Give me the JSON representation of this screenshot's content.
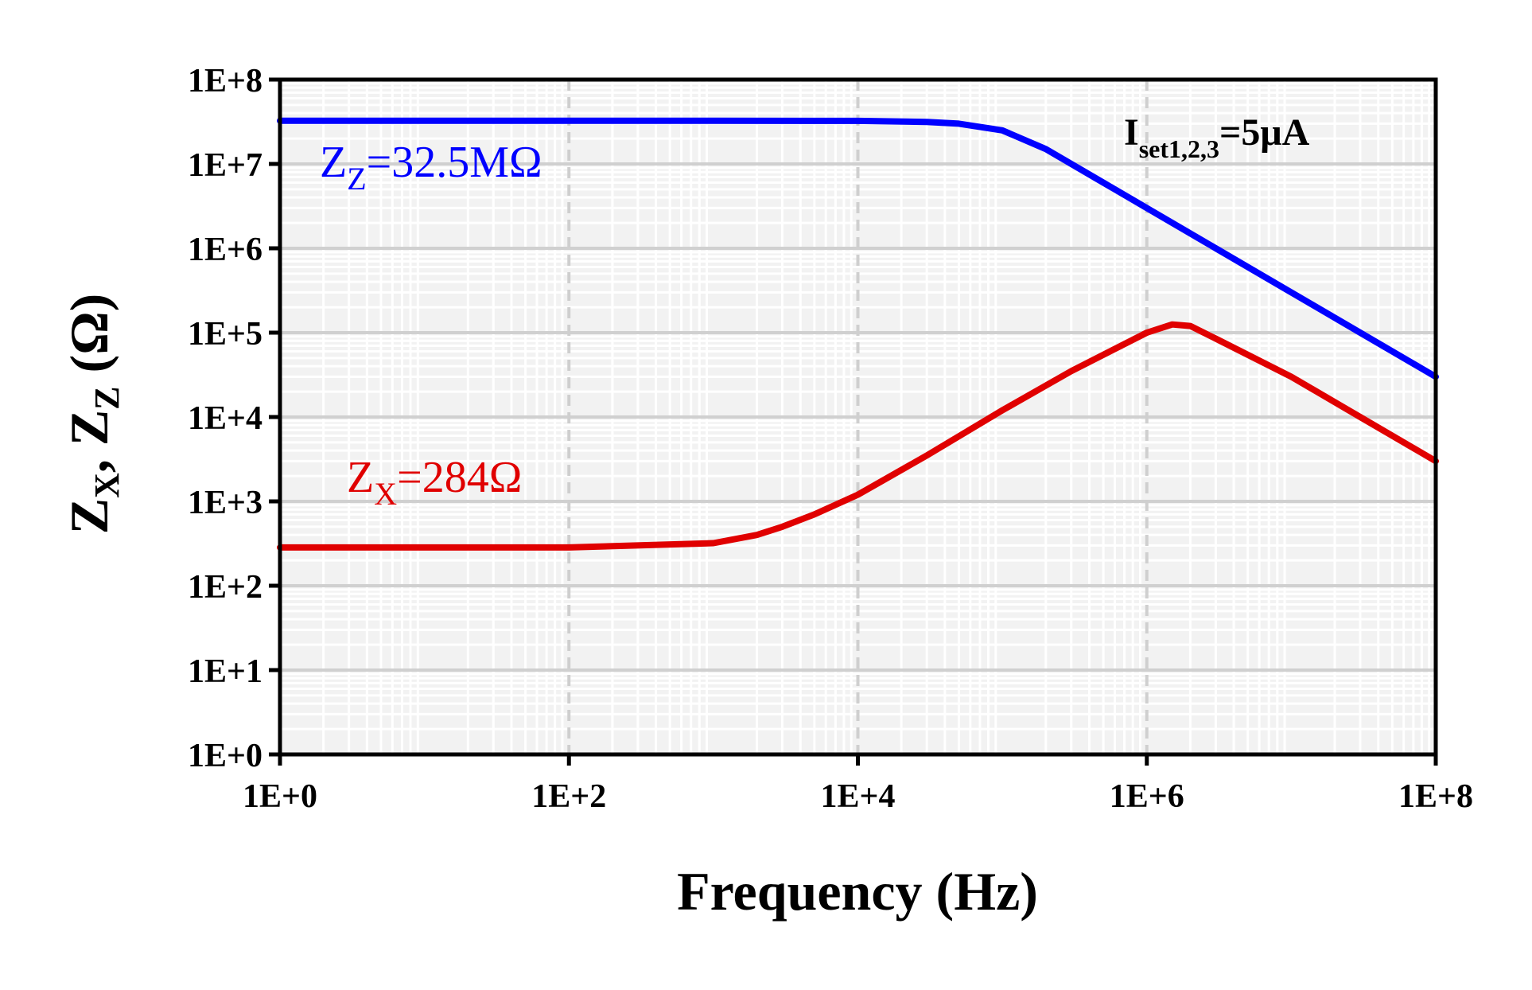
{
  "chart_data": {
    "type": "line",
    "x_scale": "log",
    "y_scale": "log",
    "xlabel": "Frequency (Hz)",
    "ylabel": {
      "main1": "Z",
      "sub1": "X",
      "sep": ", ",
      "main2": "Z",
      "sub2": "Z",
      "unit": " (Ω)"
    },
    "xlim": [
      1,
      100000000
    ],
    "ylim": [
      1,
      100000000
    ],
    "x_tick_labels": [
      "1E+0",
      "1E+2",
      "1E+4",
      "1E+6",
      "1E+8"
    ],
    "x_tick_values": [
      1,
      100,
      10000,
      1000000,
      100000000
    ],
    "y_tick_labels": [
      "1E+0",
      "1E+1",
      "1E+2",
      "1E+3",
      "1E+4",
      "1E+5",
      "1E+6",
      "1E+7",
      "1E+8"
    ],
    "y_tick_values": [
      1,
      10,
      100,
      1000,
      10000,
      100000,
      1000000,
      10000000,
      100000000
    ],
    "grid": true,
    "series": [
      {
        "color": "#0000ff",
        "x": [
          1,
          10,
          100,
          1000,
          10000,
          30000,
          50000,
          100000,
          200000,
          500000,
          1000000,
          3000000,
          10000000,
          30000000,
          100000000
        ],
        "y": [
          32500000,
          32500000,
          32500000,
          32500000,
          32400000,
          31500000,
          30000000,
          25000000,
          15000000,
          6000000,
          3000000,
          1000000,
          300000,
          100000,
          30000
        ]
      },
      {
        "color": "#e00000",
        "x": [
          1,
          10,
          100,
          1000,
          2000,
          3000,
          5000,
          10000,
          30000,
          100000,
          300000,
          1000000,
          1500000,
          2000000,
          3000000,
          10000000,
          30000000,
          100000000
        ],
        "y": [
          284,
          284,
          284,
          320,
          400,
          500,
          700,
          1200,
          3500,
          12000,
          35000,
          100000,
          125000,
          120000,
          85000,
          30000,
          10000,
          3000
        ]
      }
    ],
    "annotations": [
      {
        "main": "Z",
        "sub": "Z",
        "text": "=32.5MΩ",
        "color": "#0000ff"
      },
      {
        "main": "Z",
        "sub": "X",
        "text": "=284Ω",
        "color": "#e00000"
      },
      {
        "main": "I",
        "sub": "set1,2,3",
        "text": "=5μA",
        "color": "#000000"
      }
    ],
    "background": "#f2f2f2"
  }
}
